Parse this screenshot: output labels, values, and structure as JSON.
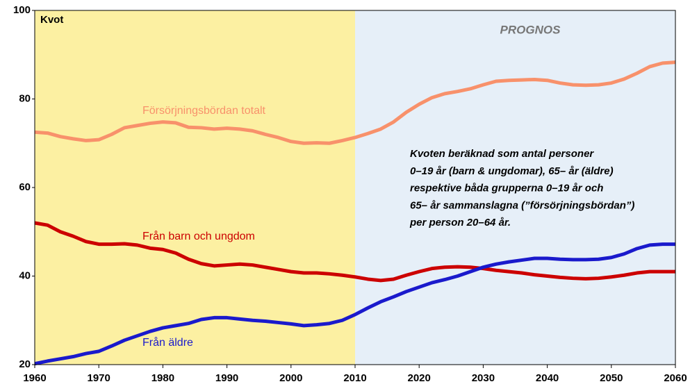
{
  "chart_data": {
    "type": "line",
    "y_axis_label": "Kvot",
    "forecast_label": "PROGNOS",
    "forecast_start": 2010,
    "note": [
      "Kvoten beräknad som antal personer",
      "0–19 år (barn & ungdomar), 65– år (äldre)",
      "respektive båda grupperna 0–19 år och",
      "65– år sammanslagna (”försörjningsbördan”)",
      "per person 20–64 år."
    ],
    "x": [
      1960,
      1962,
      1964,
      1966,
      1968,
      1970,
      1972,
      1974,
      1976,
      1978,
      1980,
      1982,
      1984,
      1986,
      1988,
      1990,
      1992,
      1994,
      1996,
      1998,
      2000,
      2002,
      2004,
      2006,
      2008,
      2010,
      2012,
      2014,
      2016,
      2018,
      2020,
      2022,
      2024,
      2026,
      2028,
      2030,
      2032,
      2034,
      2036,
      2038,
      2040,
      2042,
      2044,
      2046,
      2048,
      2050,
      2052,
      2054,
      2056,
      2058,
      2060
    ],
    "series": [
      {
        "name": "Försörjningsbördan totalt",
        "color": "#f8916b",
        "values": [
          72.5,
          72.3,
          71.5,
          71,
          70.6,
          70.8,
          72,
          73.5,
          74,
          74.5,
          74.8,
          74.6,
          73.6,
          73.5,
          73.2,
          73.4,
          73.2,
          72.8,
          72,
          71.3,
          70.4,
          70,
          70.1,
          70,
          70.6,
          71.3,
          72.2,
          73.2,
          74.8,
          77,
          78.8,
          80.3,
          81.2,
          81.7,
          82.3,
          83.2,
          84,
          84.2,
          84.3,
          84.4,
          84.2,
          83.6,
          83.2,
          83.1,
          83.2,
          83.6,
          84.5,
          85.8,
          87.3,
          88.1,
          88.3
        ]
      },
      {
        "name": "Från barn och ungdom",
        "color": "#cc0000",
        "values": [
          52,
          51.5,
          50,
          49,
          47.8,
          47.2,
          47.2,
          47.3,
          47,
          46.3,
          46,
          45.2,
          43.8,
          42.8,
          42.3,
          42.5,
          42.7,
          42.5,
          42,
          41.5,
          41,
          40.7,
          40.7,
          40.5,
          40.2,
          39.8,
          39.3,
          39,
          39.3,
          40.2,
          41,
          41.7,
          42,
          42.1,
          42,
          41.7,
          41.3,
          41,
          40.7,
          40.3,
          40,
          39.7,
          39.5,
          39.4,
          39.5,
          39.8,
          40.2,
          40.7,
          41,
          41,
          41
        ]
      },
      {
        "name": "Från äldre",
        "color": "#1a1acc",
        "values": [
          20.2,
          20.8,
          21.3,
          21.8,
          22.5,
          23,
          24.2,
          25.5,
          26.5,
          27.5,
          28.3,
          28.8,
          29.3,
          30.2,
          30.6,
          30.6,
          30.3,
          30,
          29.8,
          29.5,
          29.2,
          28.8,
          29,
          29.3,
          30,
          31.3,
          32.8,
          34.2,
          35.3,
          36.5,
          37.5,
          38.5,
          39.2,
          40,
          41,
          42,
          42.7,
          43.2,
          43.6,
          44,
          44,
          43.8,
          43.7,
          43.7,
          43.8,
          44.2,
          45,
          46.2,
          47,
          47.2,
          47.2
        ]
      }
    ],
    "xlim": [
      1960,
      2060
    ],
    "xticks": [
      1960,
      1970,
      1980,
      1990,
      2000,
      2010,
      2020,
      2030,
      2040,
      2050,
      2060
    ],
    "ylim": [
      20,
      100
    ],
    "yticks": [
      20,
      40,
      60,
      80,
      100
    ],
    "colors": {
      "history": "#fcf0a2",
      "forecast": "#e6eff8"
    }
  }
}
